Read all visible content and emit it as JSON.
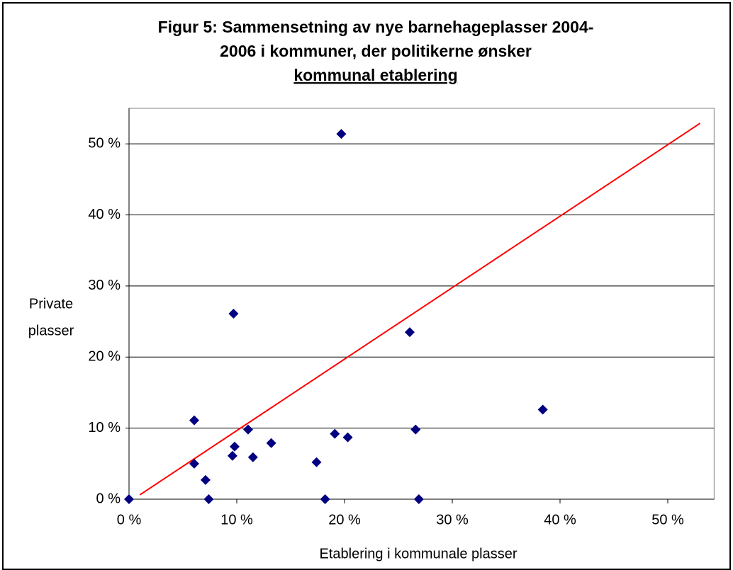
{
  "chart_data": {
    "type": "scatter",
    "title": [
      "Figur 5: Sammensetning av nye barnehageplasser 2004-",
      "2006 i kommuner, der politikerne ønsker",
      "kommunal etablering"
    ],
    "x_label": "Etablering i kommunale plasser",
    "y_label": [
      "Private",
      "plasser"
    ],
    "color": "#000080",
    "x": [
      0,
      6.05,
      6.05,
      7.1,
      7.4,
      9.6,
      9.7,
      9.8,
      11.05,
      11.5,
      13.2,
      17.4,
      18.2,
      19.1,
      20.3,
      19.7,
      26.05,
      26.6,
      26.9,
      38.4
    ],
    "values": [
      0,
      5.0,
      11.1,
      2.7,
      0,
      6.1,
      26.1,
      7.4,
      9.8,
      5.9,
      7.9,
      5.2,
      0,
      9.2,
      8.7,
      51.4,
      23.5,
      9.8,
      0,
      12.6
    ],
    "reference_line": {
      "color": "#ff0000",
      "x": [
        1,
        53
      ],
      "y": [
        0.6,
        52.9
      ]
    },
    "xlim": [
      0,
      54.3
    ],
    "ylim": [
      0,
      55
    ],
    "xticks": [
      {
        "value": 0,
        "label": "0 %"
      },
      {
        "value": 10,
        "label": "10 %"
      },
      {
        "value": 20,
        "label": "20 %"
      },
      {
        "value": 30,
        "label": "30 %"
      },
      {
        "value": 40,
        "label": "40 %"
      },
      {
        "value": 50,
        "label": "50 %"
      }
    ],
    "yticks": [
      {
        "value": 0,
        "label": "0 %"
      },
      {
        "value": 10,
        "label": "10 %"
      },
      {
        "value": 20,
        "label": "20 %"
      },
      {
        "value": 30,
        "label": "30 %"
      },
      {
        "value": 40,
        "label": "40 %"
      },
      {
        "value": 50,
        "label": "50 %"
      }
    ],
    "grid": true
  }
}
